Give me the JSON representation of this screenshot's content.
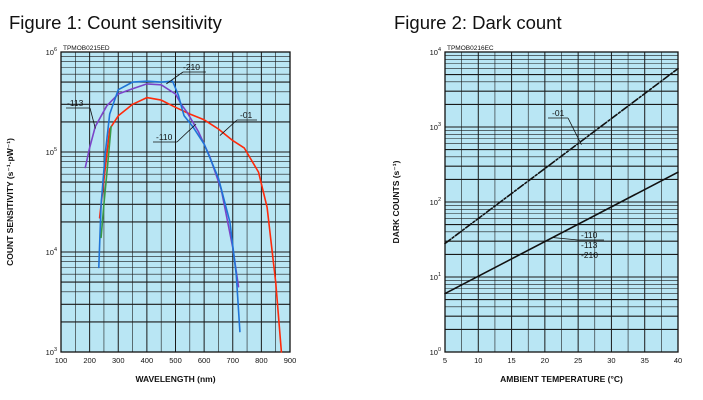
{
  "figures": [
    {
      "title_prefix": "Figure 1",
      "title_text": ": Count sensitivity",
      "chart_data": {
        "type": "line",
        "code": "TPMOB0215ED",
        "xlabel": "WAVELENGTH (nm)",
        "ylabel": "COUNT SENSITIVITY (s⁻¹·pW⁻¹)",
        "xlim": [
          100,
          900
        ],
        "ylim": [
          1000,
          1000000
        ],
        "yscale": "log",
        "grid": true,
        "x_ticks": [
          100,
          200,
          300,
          400,
          500,
          600,
          700,
          800,
          900
        ],
        "y_ticks": [
          {
            "value": 1000,
            "base": "10",
            "exp": "3"
          },
          {
            "value": 10000,
            "base": "10",
            "exp": "4"
          },
          {
            "value": 100000,
            "base": "10",
            "exp": "5"
          },
          {
            "value": 1000000,
            "base": "10",
            "exp": "6"
          }
        ],
        "series": [
          {
            "name": "-01",
            "color": "#ff2a0a",
            "x": [
              235,
              270,
              300,
              350,
              400,
              450,
              500,
              550,
              600,
              650,
              700,
              740,
              790,
              820,
              850,
              870
            ],
            "y": [
              22000,
              170000,
              230000,
              300000,
              350000,
              330000,
              280000,
              240000,
              210000,
              170000,
              130000,
              110000,
              63000,
              28000,
              5000,
              1000
            ]
          },
          {
            "name": "-113",
            "color": "#7a44c8",
            "x": [
              185,
              200,
              220,
              260,
              300,
              350,
              400,
              450,
              500,
              520,
              540,
              580,
              620,
              660,
              700,
              720
            ],
            "y": [
              70000,
              110000,
              180000,
              290000,
              380000,
              430000,
              480000,
              470000,
              380000,
              300000,
              250000,
              160000,
              90000,
              42000,
              11000,
              4500
            ]
          },
          {
            "name": "-210",
            "color": "#1f74d6",
            "x": [
              232,
              240,
              255,
              270,
              300,
              350,
              400,
              450,
              490,
              510,
              520,
              530,
              560,
              600,
              650,
              690,
              712,
              725
            ],
            "y": [
              7000,
              30000,
              100000,
              240000,
              420000,
              500000,
              510000,
              500000,
              510000,
              370000,
              290000,
              230000,
              180000,
              120000,
              55000,
              20000,
              6000,
              1600
            ]
          },
          {
            "name": "-110",
            "color": "#3a9a48",
            "x": [
              240,
              250,
              262,
              275
            ],
            "y": [
              14000,
              30000,
              70000,
              180000
            ]
          }
        ],
        "annotations": [
          {
            "text": "-210",
            "at_x": 510,
            "at_y": 480000
          },
          {
            "text": "-113",
            "at_x": 220,
            "at_y": 180000
          },
          {
            "text": "-01",
            "at_x": 690,
            "at_y": 160000
          },
          {
            "text": "-110",
            "at_x": 555,
            "at_y": 130000
          }
        ]
      }
    },
    {
      "title_prefix": "Figure 2",
      "title_text": ": Dark count",
      "chart_data": {
        "type": "line",
        "code": "TPMOB0216EC",
        "xlabel": "AMBIENT TEMPERATURE (°C)",
        "ylabel": "DARK COUNTS (s⁻¹)",
        "xlim": [
          5,
          40
        ],
        "ylim": [
          1,
          10000
        ],
        "yscale": "log",
        "grid": true,
        "x_ticks": [
          5,
          10,
          15,
          20,
          25,
          30,
          35,
          40
        ],
        "y_ticks": [
          {
            "value": 1,
            "base": "10",
            "exp": "0"
          },
          {
            "value": 10,
            "base": "10",
            "exp": "1"
          },
          {
            "value": 100,
            "base": "10",
            "exp": "2"
          },
          {
            "value": 1000,
            "base": "10",
            "exp": "3"
          },
          {
            "value": 10000,
            "base": "10",
            "exp": "4"
          }
        ],
        "series": [
          {
            "name": "-01",
            "color": "#111111",
            "dash": true,
            "x": [
              5,
              40
            ],
            "y": [
              28,
              6000
            ]
          },
          {
            "name": "-110 -113 -210",
            "color": "#111111",
            "x": [
              5,
              40
            ],
            "y": [
              6,
              250
            ]
          }
        ],
        "annotations": [
          {
            "lines": [
              "-01"
            ],
            "at_x": 25.5,
            "at_y": 580
          },
          {
            "lines": [
              "-110",
              "-113",
              "-210"
            ],
            "at_x": 22,
            "at_y": 38
          }
        ]
      }
    }
  ]
}
